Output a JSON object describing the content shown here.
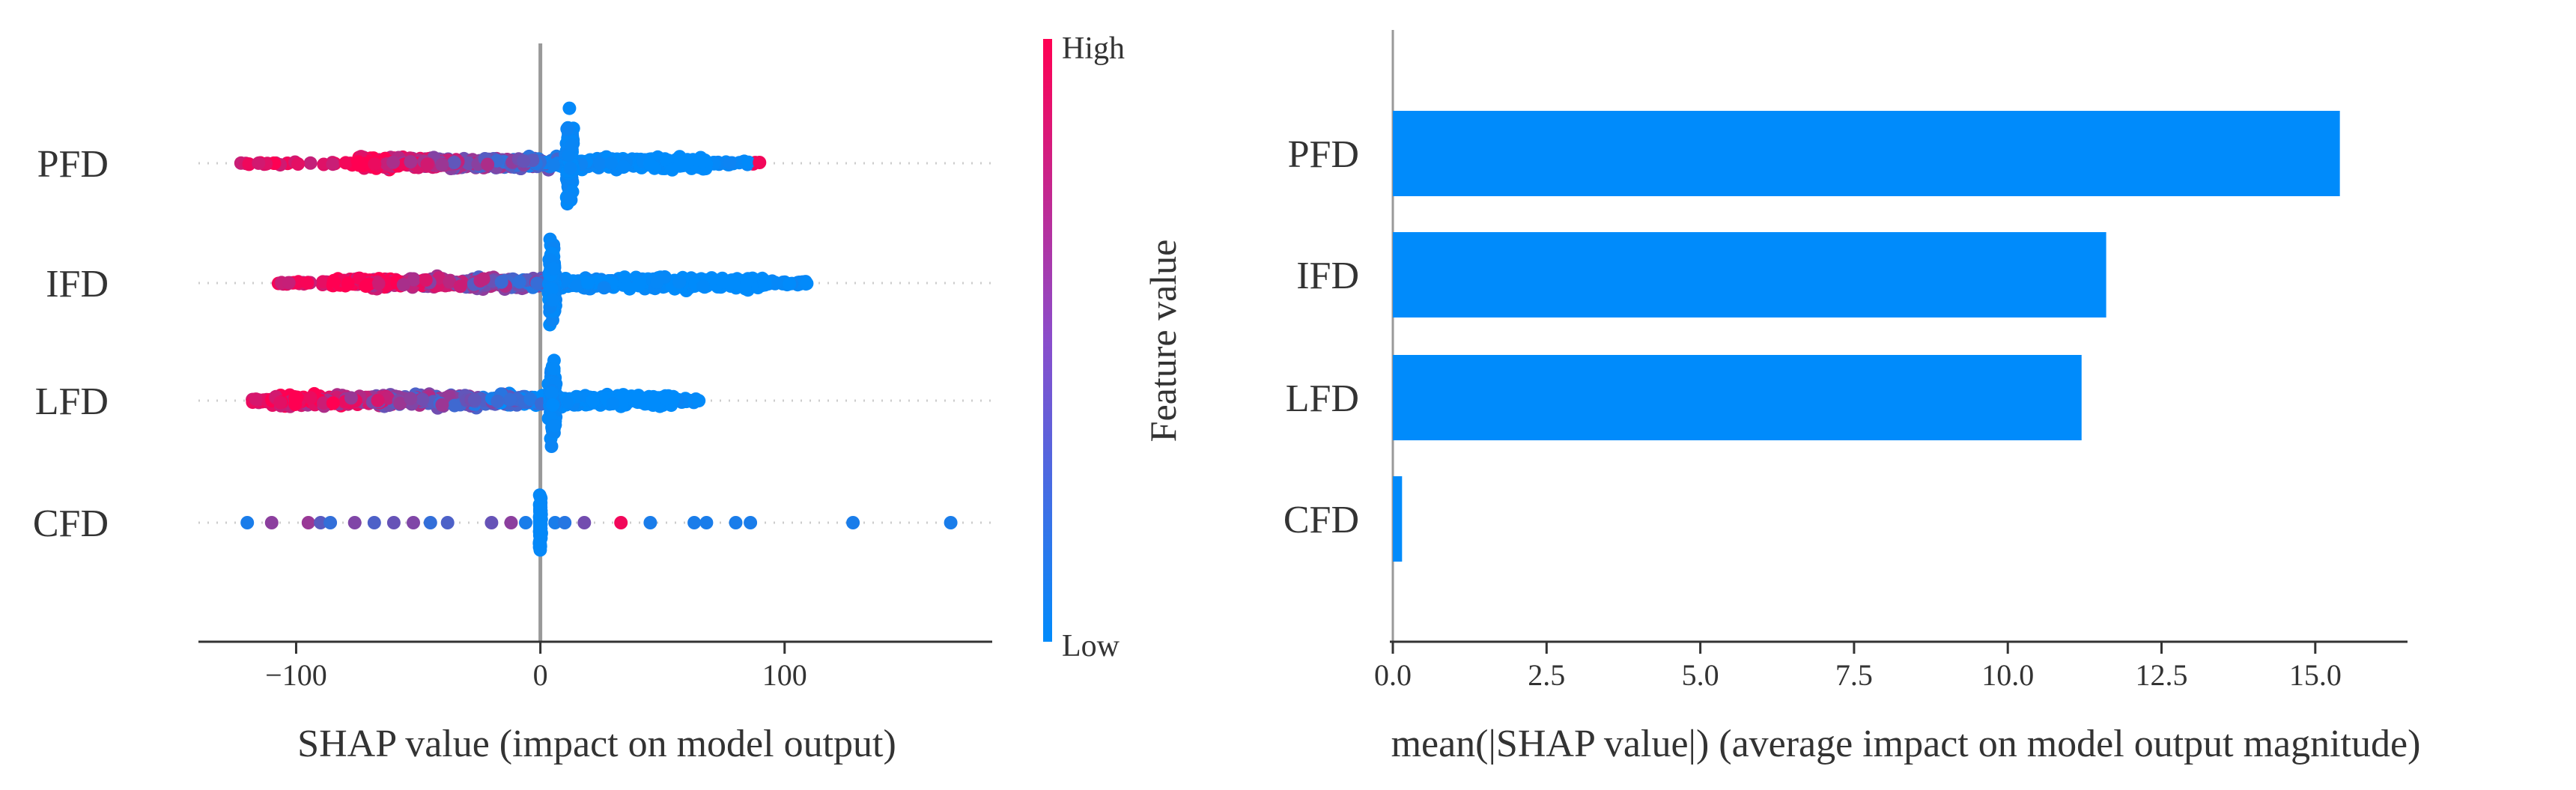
{
  "chart_data": [
    {
      "type": "scatter",
      "subtype": "shap-beeswarm",
      "title": "",
      "xlabel": "SHAP value (impact on model output)",
      "features": [
        "PFD",
        "IFD",
        "LFD",
        "CFD"
      ],
      "xlim": [
        -140,
        185
      ],
      "xticks": [
        -100,
        0,
        100
      ],
      "xtick_labels": [
        "−100",
        "0",
        "100"
      ],
      "zero_line": 0,
      "grid": "dotted horizontal row guides",
      "colorbar": {
        "label": "Feature value",
        "high_label": "High",
        "low_label": "Low",
        "high_color": "#ff0052",
        "low_color": "#008bfb"
      },
      "feature_ranges": [
        {
          "feature": "PFD",
          "min": -125,
          "max": 90,
          "dense_min": -75,
          "dense_max": 68,
          "cluster_center": 12
        },
        {
          "feature": "IFD",
          "min": -108,
          "max": 110,
          "dense_min": -85,
          "dense_max": 92,
          "cluster_center": 5
        },
        {
          "feature": "LFD",
          "min": -118,
          "max": 65,
          "dense_min": -110,
          "dense_max": 55,
          "cluster_center": 5
        },
        {
          "feature": "CFD",
          "min": -120,
          "max": 168,
          "dense_min": -1,
          "dense_max": 1,
          "cluster_center": 0
        }
      ],
      "cfd_points": [
        {
          "x": -120,
          "v": 0.1
        },
        {
          "x": -110,
          "v": 0.55
        },
        {
          "x": -95,
          "v": 0.6
        },
        {
          "x": -90,
          "v": 0.35
        },
        {
          "x": -86,
          "v": 0.2
        },
        {
          "x": -76,
          "v": 0.5
        },
        {
          "x": -68,
          "v": 0.3
        },
        {
          "x": -60,
          "v": 0.4
        },
        {
          "x": -52,
          "v": 0.5
        },
        {
          "x": -45,
          "v": 0.2
        },
        {
          "x": -38,
          "v": 0.3
        },
        {
          "x": -20,
          "v": 0.4
        },
        {
          "x": -12,
          "v": 0.55
        },
        {
          "x": -6,
          "v": 0.1
        },
        {
          "x": 6,
          "v": 0.1
        },
        {
          "x": 10,
          "v": 0.15
        },
        {
          "x": 18,
          "v": 0.45
        },
        {
          "x": 33,
          "v": 0.95
        },
        {
          "x": 45,
          "v": 0.1
        },
        {
          "x": 63,
          "v": 0.1
        },
        {
          "x": 68,
          "v": 0.1
        },
        {
          "x": 80,
          "v": 0.1
        },
        {
          "x": 86,
          "v": 0.1
        },
        {
          "x": 128,
          "v": 0.1
        },
        {
          "x": 168,
          "v": 0.1
        }
      ]
    },
    {
      "type": "bar",
      "orientation": "horizontal",
      "title": "",
      "xlabel": "mean(|SHAP value|) (average impact on model output magnitude)",
      "categories": [
        "PFD",
        "IFD",
        "LFD",
        "CFD"
      ],
      "values": [
        15.4,
        11.6,
        11.2,
        0.15
      ],
      "xlim": [
        0,
        16.5
      ],
      "xticks": [
        0.0,
        2.5,
        5.0,
        7.5,
        10.0,
        12.5,
        15.0
      ],
      "xtick_labels": [
        "0.0",
        "2.5",
        "5.0",
        "7.5",
        "10.0",
        "12.5",
        "15.0"
      ],
      "bar_color": "#008bfb",
      "grid": false
    }
  ]
}
